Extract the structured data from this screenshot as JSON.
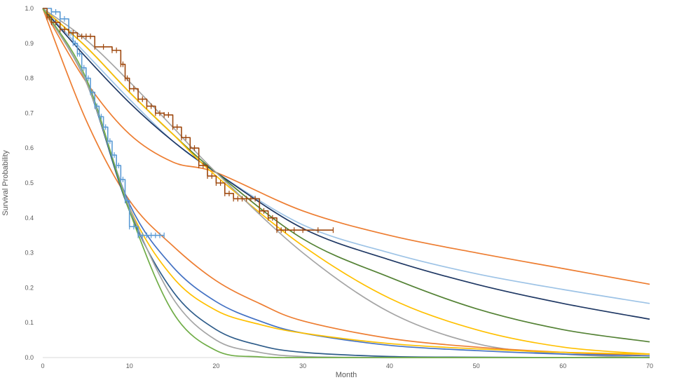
{
  "chart_data": {
    "type": "line",
    "xlabel": "Month",
    "ylabel": "Survival Probability",
    "xlim": [
      0,
      70
    ],
    "ylim": [
      0,
      1
    ],
    "x_ticks": [
      "0",
      "10",
      "20",
      "30",
      "40",
      "50",
      "60",
      "70"
    ],
    "y_ticks": [
      "0.0",
      "0.1",
      "0.2",
      "0.3",
      "0.4",
      "0.5",
      "0.6",
      "0.7",
      "0.8",
      "0.9",
      "1.0"
    ],
    "grid": false,
    "legend": "none",
    "series": [
      {
        "color": "#ed7d31",
        "kind": "curve",
        "x": [
          0,
          5,
          10,
          15,
          20,
          30,
          40,
          50,
          60,
          70
        ],
        "y": [
          1.0,
          0.79,
          0.64,
          0.56,
          0.53,
          0.42,
          0.35,
          0.3,
          0.255,
          0.21
        ]
      },
      {
        "color": "#9dc3e6",
        "kind": "curve",
        "x": [
          0,
          5,
          10,
          15,
          20,
          30,
          40,
          50,
          60,
          70
        ],
        "y": [
          1.0,
          0.87,
          0.74,
          0.62,
          0.53,
          0.38,
          0.3,
          0.24,
          0.195,
          0.155
        ]
      },
      {
        "color": "#1f3864",
        "kind": "curve",
        "x": [
          0,
          5,
          10,
          15,
          20,
          30,
          40,
          50,
          60,
          70
        ],
        "y": [
          1.0,
          0.86,
          0.73,
          0.62,
          0.53,
          0.37,
          0.28,
          0.21,
          0.155,
          0.11
        ]
      },
      {
        "color": "#548235",
        "kind": "curve",
        "x": [
          0,
          5,
          10,
          15,
          20,
          30,
          40,
          50,
          60,
          70
        ],
        "y": [
          1.0,
          0.89,
          0.76,
          0.64,
          0.53,
          0.34,
          0.23,
          0.14,
          0.08,
          0.045
        ]
      },
      {
        "color": "#ffc000",
        "kind": "curve",
        "x": [
          0,
          5,
          10,
          15,
          20,
          30,
          40,
          50,
          60,
          70
        ],
        "y": [
          1.0,
          0.89,
          0.76,
          0.64,
          0.52,
          0.32,
          0.17,
          0.08,
          0.03,
          0.01
        ]
      },
      {
        "color": "#a5a5a5",
        "kind": "curve",
        "x": [
          0,
          5,
          10,
          15,
          20,
          30,
          40,
          50,
          60,
          70
        ],
        "y": [
          1.0,
          0.91,
          0.79,
          0.66,
          0.53,
          0.3,
          0.13,
          0.04,
          0.01,
          0.0
        ]
      },
      {
        "color": "#ed7d31",
        "kind": "curve",
        "x": [
          0,
          5,
          10,
          15,
          20,
          25,
          30,
          40,
          50,
          60,
          70
        ],
        "y": [
          1.0,
          0.68,
          0.45,
          0.32,
          0.22,
          0.155,
          0.105,
          0.055,
          0.03,
          0.015,
          0.005
        ]
      },
      {
        "color": "#4472c4",
        "kind": "curve",
        "x": [
          0,
          5,
          10,
          15,
          20,
          25,
          30,
          40,
          50,
          60,
          70
        ],
        "y": [
          1.0,
          0.79,
          0.44,
          0.26,
          0.16,
          0.105,
          0.07,
          0.035,
          0.02,
          0.01,
          0.005
        ]
      },
      {
        "color": "#ffc000",
        "kind": "curve",
        "x": [
          0,
          5,
          10,
          15,
          20,
          25,
          30,
          40,
          50,
          60,
          70
        ],
        "y": [
          1.0,
          0.79,
          0.43,
          0.23,
          0.135,
          0.095,
          0.07,
          0.04,
          0.025,
          0.015,
          0.01
        ]
      },
      {
        "color": "#2e5c8a",
        "kind": "curve",
        "x": [
          0,
          5,
          10,
          15,
          20,
          25,
          30,
          40,
          50,
          60,
          70
        ],
        "y": [
          1.0,
          0.79,
          0.42,
          0.19,
          0.08,
          0.035,
          0.015,
          0.003,
          0.001,
          0.0,
          0.0
        ]
      },
      {
        "color": "#a5a5a5",
        "kind": "curve",
        "x": [
          0,
          5,
          10,
          15,
          20,
          25,
          30,
          40,
          50,
          60,
          70
        ],
        "y": [
          1.0,
          0.79,
          0.43,
          0.17,
          0.05,
          0.015,
          0.003,
          0.0,
          0.0,
          0.0,
          0.0
        ]
      },
      {
        "color": "#70ad47",
        "kind": "curve",
        "x": [
          0,
          5,
          10,
          15,
          20,
          25,
          30,
          40,
          50,
          60,
          70
        ],
        "y": [
          1.0,
          0.8,
          0.42,
          0.13,
          0.02,
          0.002,
          0.0,
          0.0,
          0.0,
          0.0,
          0.0
        ]
      },
      {
        "color": "#5b9bd5",
        "kind": "km",
        "x": [
          0,
          1,
          2,
          3,
          3.5,
          4,
          4.5,
          5,
          5.5,
          6,
          6.5,
          7,
          7.5,
          8,
          8.5,
          9,
          9.5,
          10,
          11,
          12,
          13,
          14
        ],
        "y": [
          1.0,
          0.99,
          0.97,
          0.93,
          0.9,
          0.87,
          0.83,
          0.8,
          0.76,
          0.72,
          0.69,
          0.66,
          0.62,
          0.58,
          0.55,
          0.51,
          0.45,
          0.375,
          0.35,
          0.35,
          0.35,
          0.35
        ]
      },
      {
        "color": "#9e480e",
        "kind": "km",
        "x": [
          0,
          0.5,
          1,
          2,
          3,
          4,
          5,
          6,
          8,
          9,
          9.5,
          10,
          11,
          12,
          13,
          14,
          15,
          16,
          17,
          18,
          19,
          20,
          21,
          22,
          23,
          24,
          25,
          26,
          27,
          28,
          30,
          33.5
        ],
        "y": [
          1.0,
          0.975,
          0.96,
          0.94,
          0.93,
          0.92,
          0.92,
          0.89,
          0.88,
          0.84,
          0.8,
          0.77,
          0.74,
          0.72,
          0.7,
          0.695,
          0.66,
          0.63,
          0.6,
          0.55,
          0.52,
          0.5,
          0.47,
          0.455,
          0.455,
          0.455,
          0.42,
          0.4,
          0.365,
          0.365,
          0.365,
          0.365
        ]
      }
    ]
  }
}
